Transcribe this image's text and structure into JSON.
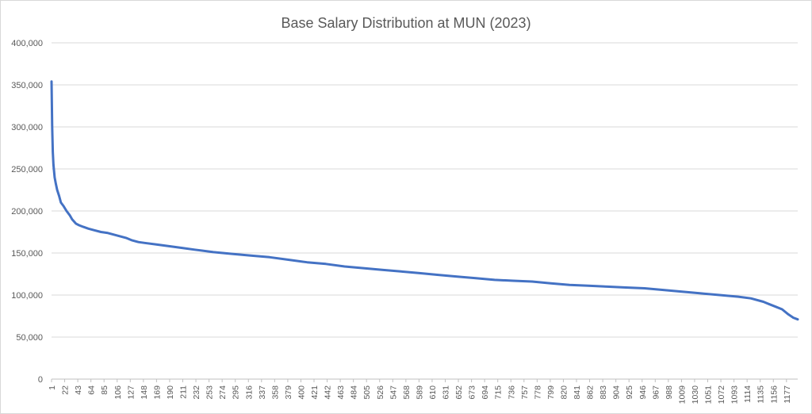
{
  "chart_data": {
    "type": "line",
    "title": "Base Salary Distribution at MUN (2023)",
    "xlabel": "",
    "ylabel": "",
    "ylim": [
      0,
      400000
    ],
    "yticks": [
      0,
      50000,
      100000,
      150000,
      200000,
      250000,
      300000,
      350000,
      400000
    ],
    "ytick_labels": [
      "0",
      "50,000",
      "100,000",
      "150,000",
      "200,000",
      "250,000",
      "300,000",
      "350,000",
      "400,000"
    ],
    "xlim": [
      1,
      1195
    ],
    "xtick_labels": [
      "1",
      "22",
      "43",
      "64",
      "85",
      "106",
      "127",
      "148",
      "169",
      "190",
      "211",
      "232",
      "253",
      "274",
      "295",
      "316",
      "337",
      "358",
      "379",
      "400",
      "421",
      "442",
      "463",
      "484",
      "505",
      "526",
      "547",
      "568",
      "589",
      "610",
      "631",
      "652",
      "673",
      "694",
      "715",
      "736",
      "757",
      "778",
      "799",
      "820",
      "841",
      "862",
      "883",
      "904",
      "925",
      "946",
      "967",
      "988",
      "1009",
      "1030",
      "1051",
      "1072",
      "1093",
      "1114",
      "1135",
      "1156",
      "1177"
    ],
    "grid": true,
    "legend": "none",
    "series": [
      {
        "color": "#4472c4",
        "x": [
          1,
          2,
          3,
          4,
          6,
          8,
          10,
          13,
          16,
          20,
          25,
          30,
          34,
          40,
          45,
          52,
          60,
          70,
          80,
          90,
          100,
          110,
          120,
          130,
          140,
          150,
          170,
          190,
          210,
          230,
          260,
          290,
          320,
          350,
          380,
          410,
          440,
          470,
          500,
          530,
          560,
          590,
          620,
          650,
          680,
          710,
          740,
          770,
          800,
          830,
          860,
          890,
          920,
          950,
          980,
          1010,
          1040,
          1070,
          1100,
          1120,
          1140,
          1150,
          1160,
          1170,
          1180,
          1188,
          1195
        ],
        "values": [
          354000,
          300000,
          270000,
          255000,
          240000,
          232000,
          225000,
          218000,
          210000,
          206000,
          200000,
          195000,
          190000,
          185000,
          183000,
          181000,
          179000,
          177000,
          175000,
          174000,
          172000,
          170000,
          168000,
          165000,
          163000,
          162000,
          160000,
          158000,
          156000,
          154000,
          151000,
          149000,
          147000,
          145000,
          142000,
          139000,
          137000,
          134000,
          132000,
          130000,
          128000,
          126000,
          124000,
          122000,
          120000,
          118000,
          117000,
          116000,
          114000,
          112000,
          111000,
          110000,
          109000,
          108000,
          106000,
          104000,
          102000,
          100000,
          98000,
          96000,
          92000,
          89000,
          86000,
          83000,
          77000,
          73000,
          71000
        ]
      }
    ]
  }
}
